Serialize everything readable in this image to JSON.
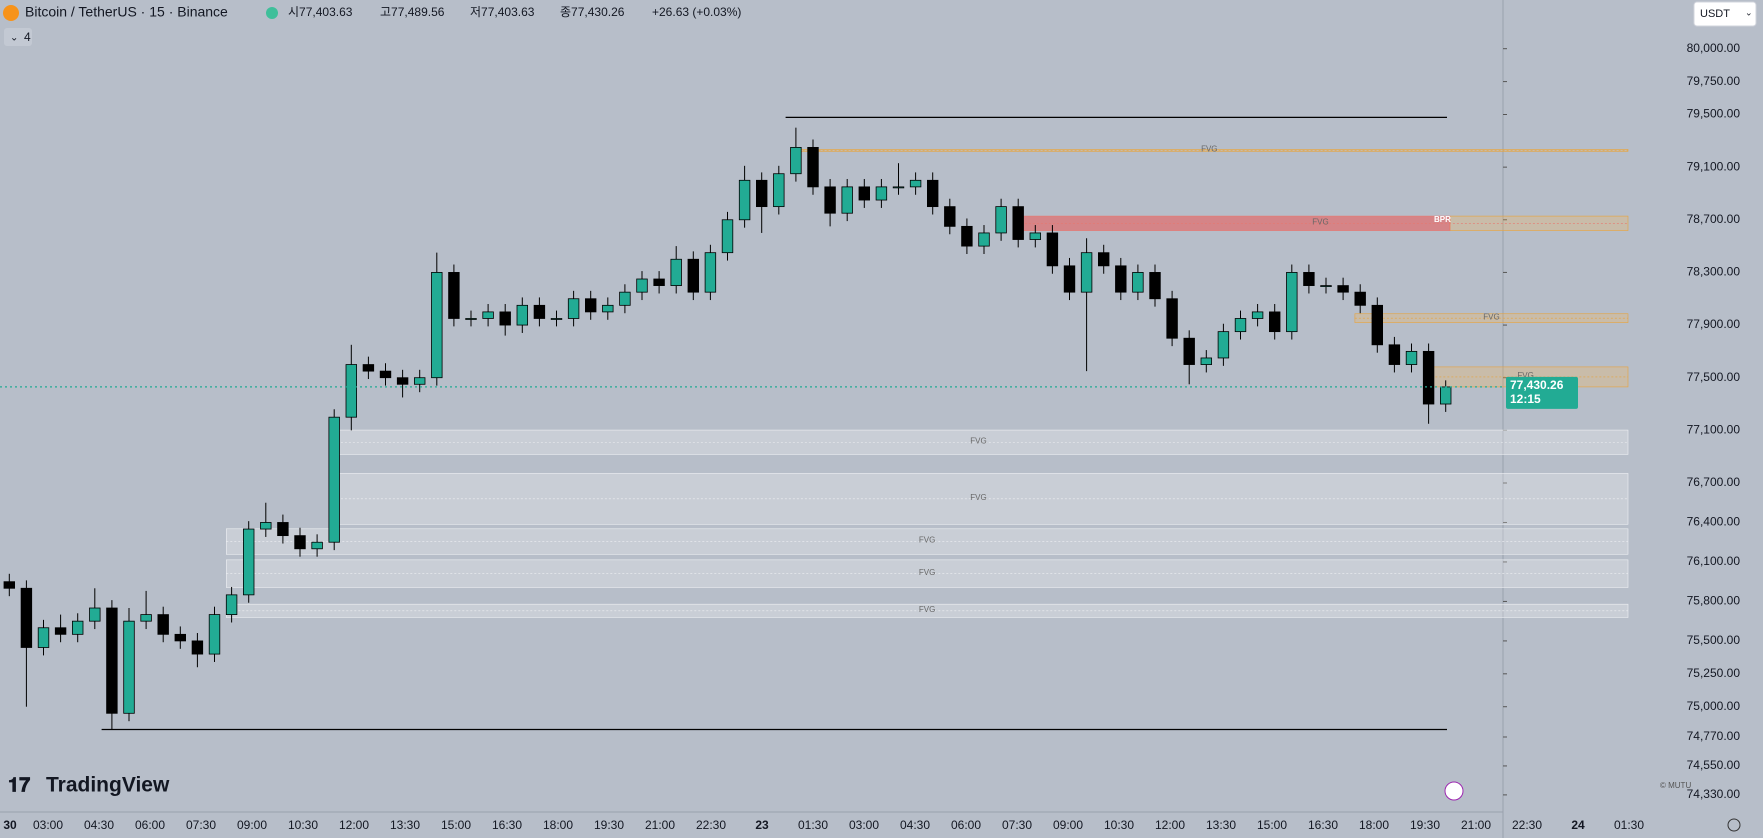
{
  "header": {
    "symbol": "Bitcoin / TetherUS · 15 · Binance",
    "open": "시77,403.63",
    "high": "고77,489.56",
    "low": "저77,403.63",
    "close": "종77,430.26",
    "change": "+26.63 (+0.03%)",
    "indicator_count": "4",
    "currency": "USDT",
    "logo": "TradingView",
    "watermark": "© MUTU"
  },
  "chart_data": {
    "type": "candlestick",
    "open": [
      75950,
      75900,
      75450,
      75600,
      75550,
      75650,
      75750,
      74950,
      75650,
      75700,
      75550,
      75500,
      75400,
      75700,
      75850,
      76350,
      76400,
      76300,
      76200,
      76250,
      77200,
      77600,
      77550,
      77500,
      77450,
      77500,
      78300,
      77950,
      77950,
      78000,
      77900,
      78050,
      77950,
      77950,
      78100,
      78000,
      78050,
      78150,
      78250,
      78200,
      78400,
      78150,
      78450,
      78700,
      79000,
      78800,
      79050,
      79250,
      78950,
      78750,
      78950,
      78850,
      78950,
      78950,
      79000,
      78800,
      78650,
      78500,
      78600,
      78800,
      78550,
      78600,
      78350,
      78150,
      78450,
      78350,
      78150,
      78300,
      78100,
      77800,
      77600,
      77650,
      77850,
      77950,
      78000,
      77850,
      78300,
      78200,
      78200,
      78150,
      78050,
      77750,
      77600,
      77700,
      77300
    ],
    "high": [
      76010,
      75960,
      75660,
      75700,
      75710,
      75900,
      75810,
      75750,
      75880,
      75760,
      75610,
      75560,
      75760,
      75910,
      76410,
      76550,
      76460,
      76360,
      76310,
      77260,
      77750,
      77660,
      77610,
      77560,
      77560,
      78450,
      78360,
      78010,
      78060,
      78060,
      78110,
      78110,
      78010,
      78160,
      78160,
      78110,
      78210,
      78310,
      78310,
      78500,
      78460,
      78510,
      78760,
      79110,
      79060,
      79110,
      79400,
      79310,
      79010,
      79010,
      79010,
      79010,
      79130,
      79060,
      79060,
      78860,
      78710,
      78660,
      78860,
      78860,
      78660,
      78660,
      78410,
      78560,
      78510,
      78410,
      78360,
      78360,
      78160,
      77860,
      77710,
      77910,
      78010,
      78060,
      78060,
      78360,
      78360,
      78260,
      78260,
      78210,
      78110,
      77810,
      77760,
      77760,
      77480
    ],
    "low": [
      75840,
      75000,
      75390,
      75490,
      75490,
      75590,
      74830,
      74890,
      75590,
      75490,
      75440,
      75300,
      75340,
      75640,
      75790,
      76290,
      76240,
      76140,
      76140,
      76190,
      77100,
      77490,
      77440,
      77350,
      77390,
      77440,
      77890,
      77890,
      77890,
      77820,
      77840,
      77890,
      77890,
      77890,
      77940,
      77940,
      77990,
      78090,
      78140,
      78140,
      78090,
      78090,
      78390,
      78640,
      78600,
      78740,
      78990,
      78890,
      78650,
      78690,
      78790,
      78790,
      78890,
      78890,
      78740,
      78590,
      78440,
      78440,
      78540,
      78490,
      78490,
      78290,
      78090,
      77550,
      78290,
      78090,
      78090,
      78040,
      77740,
      77450,
      77540,
      77590,
      77790,
      77890,
      77790,
      77790,
      78140,
      78140,
      78090,
      77990,
      77690,
      77540,
      77540,
      77150,
      77240
    ],
    "close": [
      75900,
      75450,
      75600,
      75550,
      75650,
      75750,
      74950,
      75650,
      75700,
      75550,
      75500,
      75400,
      75700,
      75850,
      76350,
      76400,
      76300,
      76200,
      76250,
      77200,
      77600,
      77550,
      77500,
      77450,
      77500,
      78300,
      77950,
      77950,
      78000,
      77900,
      78050,
      77950,
      77950,
      78100,
      78000,
      78050,
      78150,
      78250,
      78200,
      78400,
      78150,
      78450,
      78700,
      79000,
      78800,
      79050,
      79250,
      78950,
      78750,
      78950,
      78850,
      78950,
      78950,
      79000,
      78800,
      78650,
      78500,
      78600,
      78800,
      78550,
      78600,
      78350,
      78150,
      78450,
      78350,
      78150,
      78300,
      78100,
      77800,
      77600,
      77650,
      77850,
      77950,
      78000,
      77850,
      78300,
      78200,
      78200,
      78150,
      78050,
      77750,
      77600,
      77700,
      77300,
      77430
    ],
    "up_color": "#22ab94",
    "down_color": "#000000",
    "ylim": [
      74200,
      80370
    ],
    "yticks": [
      {
        "value": 80000,
        "label": "80,000.00"
      },
      {
        "value": 79750,
        "label": "79,750.00"
      },
      {
        "value": 79500,
        "label": "79,500.00"
      },
      {
        "value": 79100,
        "label": "79,100.00"
      },
      {
        "value": 78700,
        "label": "78,700.00"
      },
      {
        "value": 78300,
        "label": "78,300.00"
      },
      {
        "value": 77900,
        "label": "77,900.00"
      },
      {
        "value": 77500,
        "label": "77,500.00"
      },
      {
        "value": 77100,
        "label": "77,100.00"
      },
      {
        "value": 76700,
        "label": "76,700.00"
      },
      {
        "value": 76400,
        "label": "76,400.00"
      },
      {
        "value": 76100,
        "label": "76,100.00"
      },
      {
        "value": 75800,
        "label": "75,800.00"
      },
      {
        "value": 75500,
        "label": "75,500.00"
      },
      {
        "value": 75250,
        "label": "75,250.00"
      },
      {
        "value": 75000,
        "label": "75,000.00"
      },
      {
        "value": 74770,
        "label": "74,770.00"
      },
      {
        "value": 74550,
        "label": "74,550.00"
      },
      {
        "value": 74330,
        "label": "74,330.00"
      }
    ],
    "time_labels": [
      "30",
      "03:00",
      "04:30",
      "06:00",
      "07:30",
      "09:00",
      "10:30",
      "12:00",
      "13:30",
      "15:00",
      "16:30",
      "18:00",
      "19:30",
      "21:00",
      "22:30",
      "23",
      "01:30",
      "03:00",
      "04:30",
      "06:00",
      "07:30",
      "09:00",
      "10:30",
      "12:00",
      "13:30",
      "15:00",
      "16:30",
      "18:00",
      "19:30",
      "21:00",
      "22:30",
      "24",
      "01:30"
    ],
    "last_price": {
      "value": 77430.26,
      "label": "77,430.26"
    },
    "countdown": "12:15",
    "levels": [
      {
        "value": 79478,
        "start_index": 46
      },
      {
        "value": 74827,
        "start_index": 6
      }
    ],
    "zones": [
      {
        "label": "FVG",
        "top": 79235,
        "bottom": 79220,
        "start_index": 46,
        "kind": "bearish"
      },
      {
        "label": "FVG",
        "top": 78728,
        "bottom": 78618,
        "start_index": 59,
        "kind": "bpr",
        "tag": "BPR"
      },
      {
        "label": "FVG",
        "top": 77986,
        "bottom": 77919,
        "start_index": 79,
        "kind": "bearish"
      },
      {
        "label": "FVG",
        "top": 77582,
        "bottom": 77430,
        "start_index": 83,
        "kind": "bearish"
      },
      {
        "label": "FVG",
        "top": 77102,
        "bottom": 76917,
        "start_index": 19,
        "kind": "bullish"
      },
      {
        "label": "FVG",
        "top": 76773,
        "bottom": 76386,
        "start_index": 19,
        "kind": "bullish"
      },
      {
        "label": "FVG",
        "top": 76352,
        "bottom": 76158,
        "start_index": 13,
        "kind": "bullish"
      },
      {
        "label": "FVG",
        "top": 76116,
        "bottom": 75906,
        "start_index": 13,
        "kind": "bullish"
      },
      {
        "label": "FVG",
        "top": 75779,
        "bottom": 75678,
        "start_index": 13,
        "kind": "bullish"
      }
    ]
  }
}
